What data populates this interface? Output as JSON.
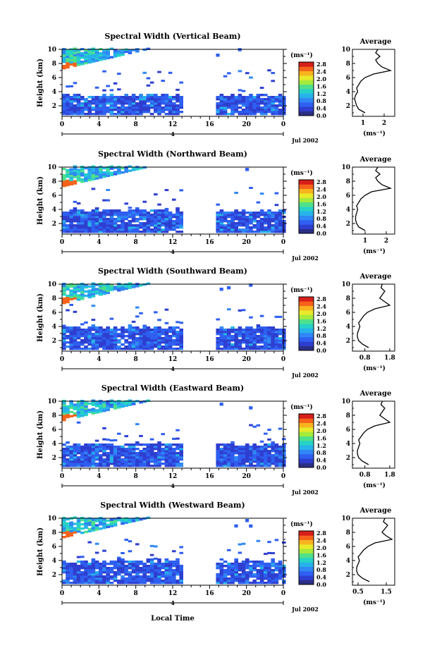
{
  "figure": {
    "xlabel": "Local Time",
    "date_label": "Jul 2002",
    "day_marker": "4",
    "avg_title": "Average",
    "unit": "(ms⁻¹)"
  },
  "colorscale": {
    "ticks": [
      "0.0",
      "0.4",
      "0.8",
      "1.2",
      "1.6",
      "2.0",
      "2.4",
      "2.8"
    ],
    "colors": [
      "#2b2f86",
      "#2e3fd0",
      "#2f5ff0",
      "#2f88f5",
      "#27b3ea",
      "#27d2c6",
      "#4fe08a",
      "#a6ea3c",
      "#e8ea2a",
      "#f8b31f",
      "#f5631b",
      "#d61e1a"
    ]
  },
  "chart_data": [
    {
      "type": "heatmap",
      "title": "Spectral Width (Vertical Beam)",
      "xlabel": "Local Time",
      "ylabel": "Height (km)",
      "xlim": [
        0,
        24
      ],
      "ylim": [
        0.5,
        10
      ],
      "xticks": [
        "0",
        "4",
        "8",
        "12",
        "16",
        "20",
        "0"
      ],
      "yticks": [
        "2",
        "4",
        "6",
        "8",
        "10"
      ],
      "data_gap_hours": [
        13.3,
        16.3
      ],
      "average_profile": {
        "xticks": [
          "1",
          "2"
        ],
        "xlim": [
          0.5,
          2.5
        ],
        "height": [
          1,
          1.5,
          2,
          2.5,
          3,
          3.5,
          4,
          4.5,
          5,
          5.5,
          6,
          6.5,
          7,
          7.5,
          8,
          8.5,
          9,
          9.5,
          10
        ],
        "width": [
          1.1,
          0.8,
          0.7,
          0.65,
          0.6,
          0.65,
          0.75,
          0.7,
          0.8,
          0.9,
          1.1,
          1.5,
          2.3,
          1.9,
          1.7,
          1.6,
          1.8,
          1.6,
          1.7
        ]
      }
    },
    {
      "type": "heatmap",
      "title": "Spectral Width (Northward Beam)",
      "xlabel": "Local Time",
      "ylabel": "Height (km)",
      "xlim": [
        0,
        24
      ],
      "ylim": [
        0.5,
        10
      ],
      "xticks": [
        "0",
        "4",
        "8",
        "12",
        "16",
        "20",
        "0"
      ],
      "yticks": [
        "2",
        "4",
        "6",
        "8",
        "10"
      ],
      "data_gap_hours": [
        13.3,
        16.3
      ],
      "average_profile": {
        "xticks": [
          "1",
          "2"
        ],
        "xlim": [
          0.4,
          2.4
        ],
        "height": [
          1,
          1.5,
          2,
          2.5,
          3,
          3.5,
          4,
          4.5,
          5,
          5.5,
          6,
          6.5,
          7,
          7.5,
          8,
          8.5,
          9,
          9.5,
          10
        ],
        "width": [
          1.0,
          0.7,
          0.6,
          0.55,
          0.55,
          0.6,
          0.65,
          0.6,
          0.7,
          0.8,
          1.0,
          1.3,
          2.2,
          1.8,
          1.6,
          1.5,
          1.7,
          1.5,
          1.6
        ]
      }
    },
    {
      "type": "heatmap",
      "title": "Spectral Width (Southward Beam)",
      "xlabel": "Local Time",
      "ylabel": "Height (km)",
      "xlim": [
        0,
        24
      ],
      "ylim": [
        0.5,
        10
      ],
      "xticks": [
        "0",
        "4",
        "8",
        "12",
        "16",
        "20",
        "0"
      ],
      "yticks": [
        "2",
        "4",
        "6",
        "8",
        "10"
      ],
      "data_gap_hours": [
        13.3,
        16.3
      ],
      "average_profile": {
        "xticks": [
          "0.8",
          "1.8"
        ],
        "xlim": [
          0.3,
          2.0
        ],
        "height": [
          1,
          1.5,
          2,
          2.5,
          3,
          3.5,
          4,
          4.5,
          5,
          5.5,
          6,
          6.5,
          7,
          7.5,
          8,
          8.5,
          9,
          9.5,
          10
        ],
        "width": [
          0.95,
          0.7,
          0.55,
          0.5,
          0.5,
          0.55,
          0.6,
          0.55,
          0.65,
          0.75,
          0.9,
          1.2,
          1.8,
          1.6,
          1.4,
          1.5,
          1.6,
          1.45,
          1.5
        ]
      }
    },
    {
      "type": "heatmap",
      "title": "Spectral Width (Eastward Beam)",
      "xlabel": "Local Time",
      "ylabel": "Height (km)",
      "xlim": [
        0,
        24
      ],
      "ylim": [
        0.5,
        10
      ],
      "xticks": [
        "0",
        "4",
        "8",
        "12",
        "16",
        "20",
        "0"
      ],
      "yticks": [
        "2",
        "4",
        "6",
        "8",
        "10"
      ],
      "data_gap_hours": [
        13.3,
        16.3
      ],
      "average_profile": {
        "xticks": [
          "0.8",
          "1.8"
        ],
        "xlim": [
          0.3,
          2.0
        ],
        "height": [
          1,
          1.5,
          2,
          2.5,
          3,
          3.5,
          4,
          4.5,
          5,
          5.5,
          6,
          6.5,
          7,
          7.5,
          8,
          8.5,
          9,
          9.5,
          10
        ],
        "width": [
          0.95,
          0.7,
          0.55,
          0.5,
          0.5,
          0.55,
          0.6,
          0.55,
          0.65,
          0.75,
          0.9,
          1.2,
          1.8,
          1.6,
          1.4,
          1.5,
          1.6,
          1.45,
          1.5
        ]
      }
    },
    {
      "type": "heatmap",
      "title": "Spectral Width (Westward Beam)",
      "xlabel": "Local Time",
      "ylabel": "Height (km)",
      "xlim": [
        0,
        24
      ],
      "ylim": [
        0.5,
        10
      ],
      "xticks": [
        "0",
        "4",
        "8",
        "12",
        "16",
        "20",
        "0"
      ],
      "yticks": [
        "2",
        "4",
        "6",
        "8",
        "10"
      ],
      "data_gap_hours": [
        13.3,
        16.3
      ],
      "average_profile": {
        "xticks": [
          "0.5",
          "1.5"
        ],
        "xlim": [
          0.3,
          1.8
        ],
        "height": [
          1,
          1.5,
          2,
          2.5,
          3,
          3.5,
          4,
          4.5,
          5,
          5.5,
          6,
          6.5,
          7,
          7.5,
          8,
          8.5,
          9,
          9.5,
          10
        ],
        "width": [
          0.9,
          0.65,
          0.5,
          0.45,
          0.45,
          0.5,
          0.55,
          0.5,
          0.6,
          0.7,
          0.85,
          1.1,
          1.7,
          1.5,
          1.35,
          1.45,
          1.55,
          1.4,
          1.45
        ]
      }
    }
  ]
}
